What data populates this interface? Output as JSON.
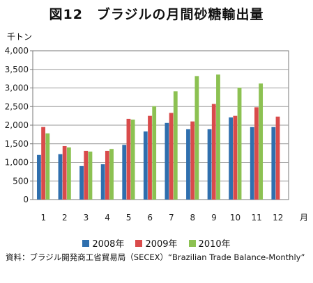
{
  "title": "図12　ブラジルの月間砂糖輸出量",
  "source": "資料：ブラジル開発商工省貿易局（SECEX）“Brazilian Trade Balance-Monthly”",
  "chart_data": {
    "type": "bar",
    "ylabel": "千トン",
    "xlabel": "月",
    "ylim": [
      0,
      4000
    ],
    "yticks": [
      "0",
      "500",
      "1,000",
      "1,500",
      "2,000",
      "2,500",
      "3,000",
      "3,500",
      "4,000"
    ],
    "categories": [
      "1",
      "2",
      "3",
      "4",
      "5",
      "6",
      "7",
      "8",
      "9",
      "10",
      "11",
      "12"
    ],
    "grid": true,
    "legend_position": "bottom",
    "series": [
      {
        "name": "2008年",
        "color": "#2f6fae",
        "values": [
          1200,
          1220,
          900,
          950,
          1470,
          1830,
          2060,
          1890,
          1890,
          2210,
          1950,
          1950
        ]
      },
      {
        "name": "2009年",
        "color": "#d94b4b",
        "values": [
          1950,
          1440,
          1310,
          1310,
          2170,
          2250,
          2330,
          2100,
          2570,
          2250,
          2480,
          2230
        ]
      },
      {
        "name": "2010年",
        "color": "#8cc152",
        "values": [
          1780,
          1400,
          1290,
          1360,
          2150,
          2510,
          2910,
          3320,
          3360,
          3010,
          3120,
          null
        ]
      }
    ]
  }
}
